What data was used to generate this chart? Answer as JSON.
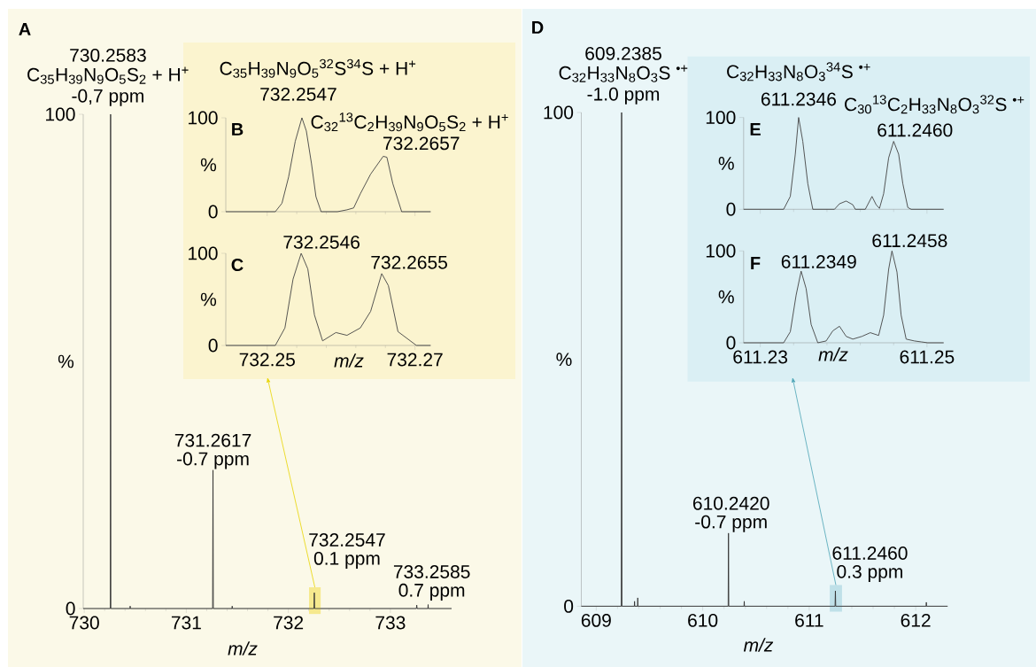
{
  "chart_data": [
    {
      "type": "line",
      "title": "A",
      "xlabel": "m/z",
      "ylabel": "%",
      "color": "#333333",
      "xlim": [
        729.99,
        733.6
      ],
      "ylim": [
        0,
        100
      ],
      "xticks": [
        730,
        731,
        732,
        733
      ],
      "yticks": [
        0,
        100
      ],
      "x": [
        729.99,
        730.255,
        730.2583,
        730.261,
        730.448,
        730.45,
        730.452,
        731.258,
        731.2617,
        731.265,
        731.448,
        731.45,
        731.452,
        732.251,
        732.2547,
        732.258,
        733.255,
        733.2585,
        733.262,
        733.368,
        733.37,
        733.372,
        733.6
      ],
      "values": [
        0,
        0,
        100,
        0,
        0,
        0.5,
        0,
        0,
        28,
        0,
        0,
        0.5,
        0,
        0,
        3.2,
        0,
        0,
        0.7,
        0,
        0,
        0.8,
        0,
        0
      ],
      "bands": [
        {
          "axis": "x",
          "from": 732.203,
          "to": 732.317,
          "color": "#f6e98e"
        }
      ],
      "annotations": [
        "730.2583",
        "C$_{35}$H$_{39}$N$_{9}$O$_{5}$S$_{2}$ + H$^{+}$",
        {
          "text": "-0,7 ppm",
          "x": 730.2583,
          "y": 100
        },
        "731.2617",
        {
          "text": "-0.7 ppm",
          "x": 731.2617,
          "y": 28
        },
        "732.2547",
        {
          "text": "0.1 ppm",
          "x": 732.2547,
          "y": 3.2
        },
        "733.2585",
        {
          "text": "0.7 ppm",
          "x": 733.2585,
          "y": 0.7
        }
      ]
    },
    {
      "type": "line",
      "title": "B",
      "ylabel": "%",
      "color": "#444444",
      "xlim": [
        732.2444,
        732.2722
      ],
      "ylim": [
        0,
        100
      ],
      "xticks": [
        732.25,
        732.27
      ],
      "yticks": [
        0,
        100
      ],
      "tick_labels": "y",
      "x": [
        732.2444,
        732.2511,
        732.252,
        732.2529,
        732.2538,
        732.2547,
        732.2553,
        732.256,
        732.2566,
        732.2573,
        732.2595,
        732.2608,
        732.2617,
        732.2626,
        732.264,
        732.2657,
        732.2662,
        732.267,
        732.2682,
        732.2721
      ],
      "values": [
        0,
        0,
        9,
        37,
        75,
        100,
        86,
        51,
        16,
        0,
        0,
        2,
        4,
        19,
        40,
        59,
        58,
        30,
        0,
        0
      ],
      "annotations": [
        "C$_{35}$H$_{39}$N$_{9}$O$_{5}$$^{32}$S$^{34}$S + H$^{+}$",
        {
          "text": "732.2547",
          "x": 732.2547,
          "y": 100
        },
        "C$_{32}$$^{13}$C$_{2}$H$_{39}$N$_{9}$O$_{5}$S$_{2}$ + H$^{+}$",
        {
          "text": "732.2657",
          "x": 732.2657,
          "y": 59
        }
      ]
    },
    {
      "type": "line",
      "title": "C",
      "xlabel": "m/z",
      "ylabel": "%",
      "color": "#444444",
      "xlim": [
        732.2444,
        732.2722
      ],
      "ylim": [
        0,
        100
      ],
      "xticks": [
        732.25,
        732.27
      ],
      "yticks": [
        0,
        100
      ],
      "x": [
        732.2444,
        732.2511,
        732.2524,
        732.2535,
        732.2546,
        732.2555,
        732.2564,
        732.2575,
        732.2593,
        732.2608,
        732.2626,
        732.264,
        732.2655,
        732.2664,
        732.2677,
        732.2702,
        732.2721
      ],
      "values": [
        0,
        0,
        19,
        72,
        100,
        83,
        33,
        5,
        14,
        11,
        19,
        37,
        78,
        65,
        15,
        0,
        0
      ],
      "annotations": [
        {
          "text": "732.2546",
          "x": 732.2546,
          "y": 100
        },
        {
          "text": "732.2655",
          "x": 732.2655,
          "y": 78
        }
      ]
    },
    {
      "type": "line",
      "title": "D",
      "xlabel": "m/z",
      "ylabel": "%",
      "color": "#333333",
      "xlim": [
        608.86,
        612.3
      ],
      "ylim": [
        0,
        100
      ],
      "xticks": [
        609,
        610,
        611,
        612
      ],
      "yticks": [
        0,
        100
      ],
      "x": [
        608.86,
        609.235,
        609.2385,
        609.242,
        609.358,
        609.36,
        609.362,
        609.388,
        609.39,
        609.392,
        610.239,
        610.242,
        610.245,
        610.388,
        610.39,
        610.392,
        611.243,
        611.246,
        611.249,
        612.098,
        612.1,
        612.102,
        612.3
      ],
      "values": [
        0,
        0,
        100,
        0,
        0,
        1,
        0,
        0,
        1.7,
        0,
        0,
        14.8,
        0,
        0,
        1,
        0,
        0,
        3.1,
        0,
        0,
        0.8,
        0,
        0
      ],
      "bands": [
        {
          "axis": "x",
          "from": 611.193,
          "to": 611.308,
          "color": "#bfe0e8"
        }
      ],
      "annotations": [
        "609.2385",
        "C$_{32}$H$_{33}$N$_{8}$O$_{3}$S $^{•+}$",
        {
          "text": "-1.0 ppm",
          "x": 609.2385,
          "y": 100
        },
        "610.2420",
        {
          "text": "-0.7 ppm",
          "x": 610.242,
          "y": 14.8
        },
        "611.2460",
        {
          "text": "0.3 ppm",
          "x": 611.246,
          "y": 3.1
        }
      ]
    },
    {
      "type": "line",
      "title": "E",
      "ylabel": "%",
      "color": "#444444",
      "xlim": [
        611.228,
        611.252
      ],
      "ylim": [
        0,
        100
      ],
      "xticks": [
        611.23,
        611.25
      ],
      "yticks": [
        0,
        100
      ],
      "tick_labels": "y",
      "x": [
        611.228,
        611.2328,
        611.2336,
        611.2342,
        611.2346,
        611.2351,
        611.2357,
        611.2363,
        611.2389,
        611.2395,
        611.2403,
        611.2411,
        611.2414,
        611.2426,
        611.2434,
        611.2439,
        611.2443,
        611.2448,
        611.2454,
        611.246,
        611.2466,
        611.2471,
        611.2477,
        611.2481,
        611.252
      ],
      "values": [
        0,
        0,
        14,
        60,
        100,
        74,
        28,
        0,
        0,
        6,
        9,
        5,
        0,
        0,
        14,
        5,
        1,
        17,
        56,
        74,
        60,
        28,
        2,
        0,
        0
      ],
      "annotations": [
        "C$_{32}$H$_{33}$N$_{8}$O$_{3}$$^{34}$S $^{•+}$",
        {
          "text": "611.2346",
          "x": 611.2346,
          "y": 100
        },
        "C$_{30}$$^{13}$C$_{2}$H$_{33}$N$_{8}$O$_{3}$$^{32}$S $^{•+}$",
        {
          "text": "611.2460",
          "x": 611.246,
          "y": 74
        }
      ]
    },
    {
      "type": "line",
      "title": "F",
      "xlabel": "m/z",
      "ylabel": "%",
      "color": "#444444",
      "xlim": [
        611.228,
        611.252
      ],
      "ylim": [
        0,
        100
      ],
      "xticks": [
        611.23,
        611.25
      ],
      "yticks": [
        0,
        100
      ],
      "x": [
        611.228,
        611.2328,
        611.2336,
        611.2343,
        611.2349,
        611.2355,
        611.2361,
        611.2369,
        611.2379,
        611.2387,
        611.2395,
        611.2403,
        611.2411,
        611.2422,
        611.2432,
        611.2442,
        611.2448,
        611.2454,
        611.2458,
        611.2464,
        611.2469,
        611.2475,
        611.2485,
        611.2493,
        611.2501,
        611.252
      ],
      "values": [
        0,
        0,
        12,
        52,
        78,
        59,
        20,
        0,
        2,
        13,
        18,
        7,
        4,
        7,
        11,
        8,
        30,
        80,
        100,
        77,
        30,
        4,
        2,
        1,
        0,
        0
      ],
      "annotations": [
        {
          "text": "611.2349",
          "x": 611.2349,
          "y": 78
        },
        {
          "text": "611.2458",
          "x": 611.2458,
          "y": 100
        }
      ]
    }
  ]
}
